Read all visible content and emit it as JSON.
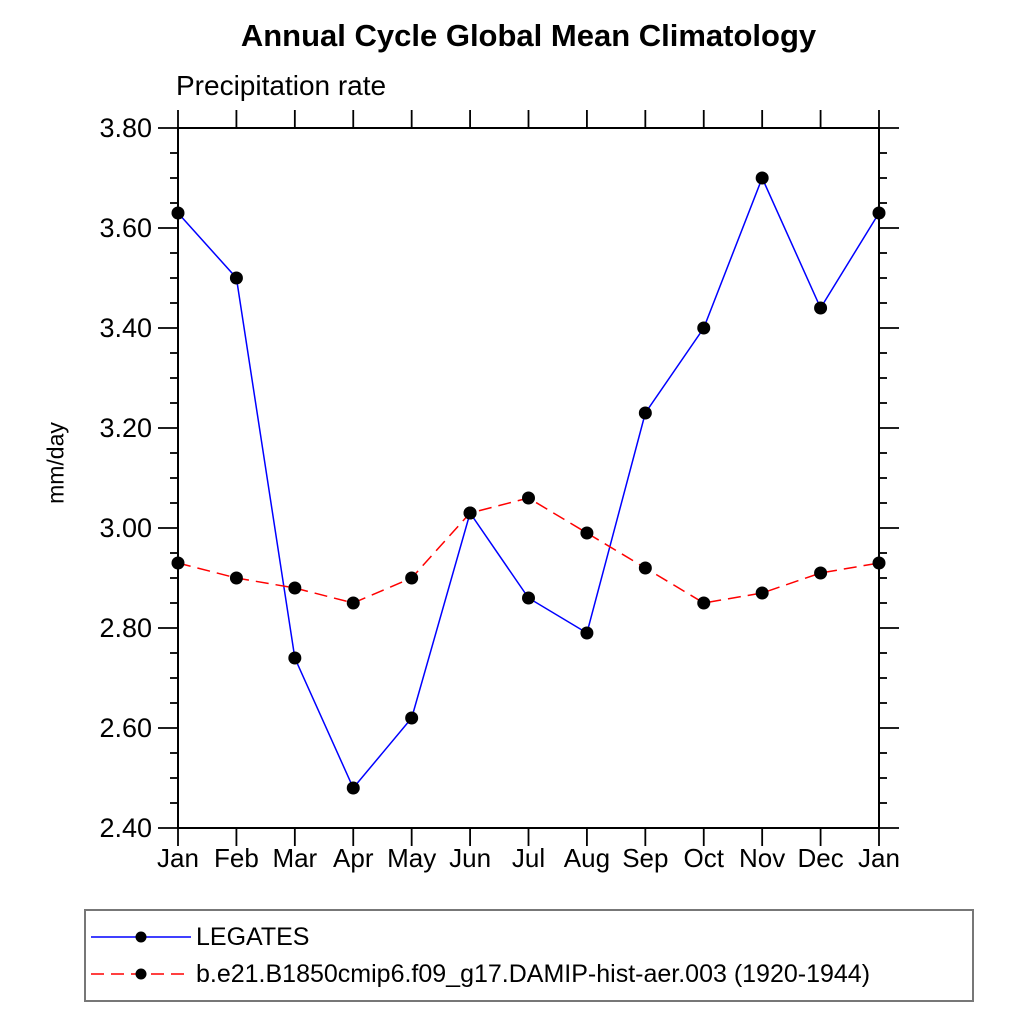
{
  "page": {
    "background": "#ffffff"
  },
  "chart_data": {
    "type": "line",
    "title": "Annual Cycle Global Mean Climatology",
    "subtitle": "Precipitation rate",
    "ylabel": "mm/day",
    "xlabel": "",
    "ylim": [
      2.4,
      3.8
    ],
    "ytick_step": 0.2,
    "yminor_step": 0.05,
    "ytick_labels": [
      "3.80",
      "3.60",
      "3.40",
      "3.20",
      "3.00",
      "2.80",
      "2.60",
      "2.40"
    ],
    "grid": false,
    "legend_position": "bottom",
    "axis_color": "#000000",
    "text_color": "#000000",
    "categories": [
      "Jan",
      "Feb",
      "Mar",
      "Apr",
      "May",
      "Jun",
      "Jul",
      "Aug",
      "Sep",
      "Oct",
      "Nov",
      "Dec",
      "Jan"
    ],
    "series": [
      {
        "name": "LEGATES",
        "line_color": "#0000ff",
        "line_style": "solid",
        "marker": "filled-circle",
        "marker_color": "#000000",
        "values": [
          3.63,
          3.5,
          2.74,
          2.48,
          2.62,
          3.03,
          2.86,
          2.79,
          3.23,
          3.4,
          3.7,
          3.44,
          3.63
        ]
      },
      {
        "name": "b.e21.B1850cmip6.f09_g17.DAMIP-hist-aer.003 (1920-1944)",
        "line_color": "#ff0000",
        "line_style": "dashed",
        "marker": "filled-circle",
        "marker_color": "#000000",
        "values": [
          2.93,
          2.9,
          2.88,
          2.85,
          2.9,
          3.03,
          3.06,
          2.99,
          2.92,
          2.85,
          2.87,
          2.91,
          2.93
        ]
      }
    ]
  }
}
